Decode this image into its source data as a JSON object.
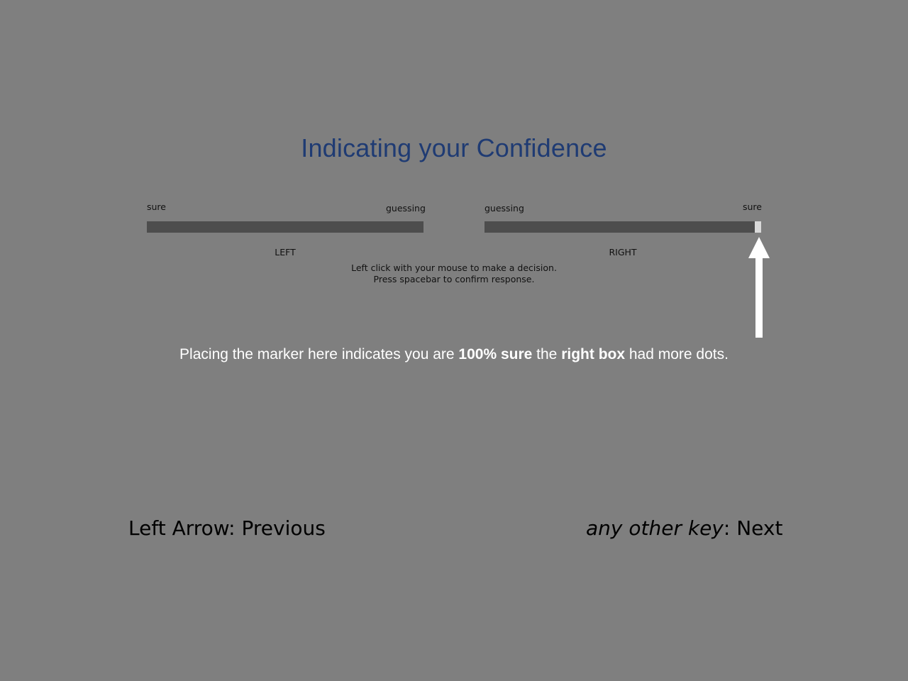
{
  "title": "Indicating your Confidence",
  "scale": {
    "left_end_label": "sure",
    "left_inner_label": "guessing",
    "right_inner_label": "guessing",
    "right_end_label": "sure",
    "left_side_label": "LEFT",
    "right_side_label": "RIGHT",
    "marker_position": 1.0
  },
  "instructions": {
    "line1": "Left click with your mouse to make a decision.",
    "line2": "Press spacebar to confirm response."
  },
  "caption": {
    "part1": "Placing the marker here indicates you are ",
    "bold1": "100% sure",
    "part2": " the ",
    "bold2": "right box",
    "part3": " had more dots."
  },
  "nav": {
    "previous_key": "Left Arrow",
    "previous_sep": ": ",
    "previous_label": "Previous",
    "next_key": "any other key",
    "next_sep": ": ",
    "next_label": "Next"
  },
  "colors": {
    "background": "#7f7f7f",
    "title": "#1f3b73",
    "bar": "#4d4d4d",
    "marker": "#d9d9d9",
    "arrow": "#ffffff"
  }
}
